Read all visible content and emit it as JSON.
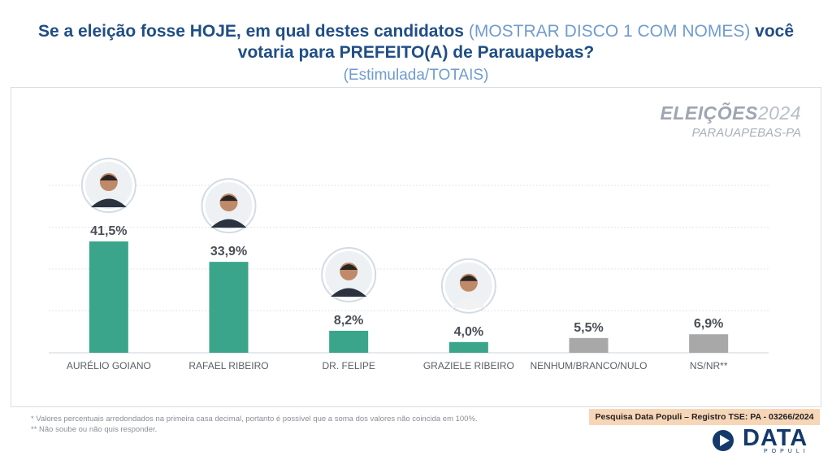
{
  "header": {
    "title_part1": "Se a eleição fosse HOJE, em qual destes candidatos ",
    "title_note": "(MOSTRAR DISCO 1 COM NOMES)",
    "title_part2": " você",
    "title_line2": "votaria para PREFEITO(A) de Parauapebas?",
    "subtitle": "(Estimulada/TOTAIS)"
  },
  "brand": {
    "title": "ELEIÇÕES",
    "year": "2024",
    "place": "PARAUAPEBAS-PA"
  },
  "colors": {
    "candidate_bar": "#3aa58a",
    "other_bar": "#a8a8a8",
    "title": "#1f4e86",
    "accent_light": "#6f9ccf"
  },
  "chart_data": {
    "type": "bar",
    "categories": [
      "AURÉLIO GOIANO",
      "RAFAEL RIBEIRO",
      "DR. FELIPE",
      "GRAZIELE RIBEIRO",
      "NENHUM/BRANCO/NULO",
      "NS/NR**"
    ],
    "values": [
      41.5,
      33.9,
      8.2,
      4.0,
      5.5,
      6.9
    ],
    "labels": [
      "41,5%",
      "33,9%",
      "8,2%",
      "4,0%",
      "5,5%",
      "6,9%"
    ],
    "bar_colors": [
      "#3aa58a",
      "#3aa58a",
      "#3aa58a",
      "#3aa58a",
      "#a8a8a8",
      "#a8a8a8"
    ],
    "has_photo": [
      true,
      true,
      true,
      true,
      false,
      false
    ],
    "ylim": [
      0,
      50
    ],
    "grid": true,
    "unit": "%"
  },
  "footer": {
    "note1": "*  Valores percentuais arredondados na primeira casa decimal, portanto é possível que a soma dos valores não coincida em 100%.",
    "note2": "** Não soube ou não quis responder.",
    "registro": "Pesquisa Data Populi – Registro TSE: PA - 03266/2024",
    "logo_main": "DATA",
    "logo_sub": "POPULI"
  }
}
